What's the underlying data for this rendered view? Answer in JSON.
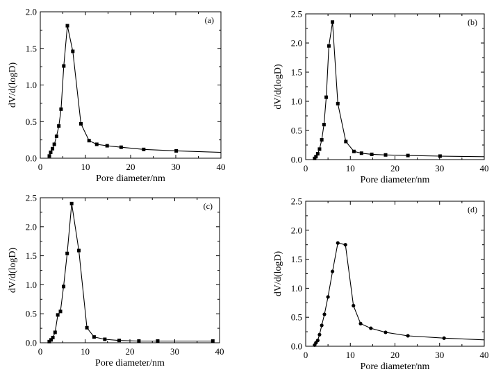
{
  "chart_data": [
    {
      "type": "line",
      "panel_label": "(a)",
      "xlabel": "Pore diameter/nm",
      "ylabel": "dV/d(logD)",
      "xlim": [
        0,
        40
      ],
      "ylim": [
        0,
        2.0
      ],
      "xticks": [
        "0",
        "10",
        "20",
        "30",
        "40"
      ],
      "yticks": [
        "0.0",
        "0.5",
        "1.0",
        "1.5",
        "2.0"
      ],
      "marker": "square",
      "x": [
        2.0,
        2.3,
        2.7,
        3.1,
        3.6,
        4.1,
        4.6,
        5.2,
        6.0,
        7.2,
        9.0,
        10.8,
        12.5,
        14.8,
        17.9,
        22.9,
        30.1,
        40.0
      ],
      "y": [
        0.03,
        0.08,
        0.13,
        0.19,
        0.3,
        0.44,
        0.67,
        1.26,
        1.81,
        1.46,
        0.47,
        0.24,
        0.19,
        0.17,
        0.15,
        0.12,
        0.1,
        0.08
      ]
    },
    {
      "type": "line",
      "panel_label": "(b)",
      "xlabel": "Pore diameter/nm",
      "ylabel": "dV/d(logD)",
      "xlim": [
        0,
        40
      ],
      "ylim": [
        0,
        2.5
      ],
      "xticks": [
        "0",
        "10",
        "20",
        "30",
        "40"
      ],
      "yticks": [
        "0.0",
        "0.5",
        "1.0",
        "1.5",
        "2.0",
        "2.5"
      ],
      "marker": "square",
      "x": [
        2.0,
        2.3,
        2.7,
        3.1,
        3.6,
        4.1,
        4.6,
        5.2,
        6.0,
        7.2,
        9.0,
        10.8,
        12.5,
        14.8,
        17.9,
        22.9,
        30.1,
        40.0
      ],
      "y": [
        0.02,
        0.05,
        0.1,
        0.18,
        0.34,
        0.6,
        1.07,
        1.95,
        2.36,
        0.96,
        0.31,
        0.14,
        0.11,
        0.09,
        0.08,
        0.07,
        0.06,
        0.05
      ]
    },
    {
      "type": "line",
      "panel_label": "(c)",
      "xlabel": "Pore diameter/nm",
      "ylabel": "dV/d(logD)",
      "xlim": [
        0,
        40
      ],
      "ylim": [
        0,
        2.5
      ],
      "xticks": [
        "0",
        "10",
        "20",
        "30",
        "40"
      ],
      "yticks": [
        "0.0",
        "0.5",
        "1.0",
        "1.5",
        "2.0",
        "2.5"
      ],
      "marker": "square",
      "x": [
        2.0,
        2.4,
        2.8,
        3.3,
        3.9,
        4.5,
        5.2,
        6.0,
        7.0,
        8.6,
        10.4,
        12.0,
        14.4,
        17.6,
        22.0,
        26.2,
        38.5
      ],
      "y": [
        0.02,
        0.05,
        0.09,
        0.18,
        0.48,
        0.54,
        0.97,
        1.54,
        2.4,
        1.59,
        0.26,
        0.1,
        0.06,
        0.04,
        0.03,
        0.03,
        0.03
      ]
    },
    {
      "type": "line",
      "panel_label": "(d)",
      "xlabel": "Pore diameter/nm",
      "ylabel": "dV/d(logD)",
      "xlim": [
        0,
        40
      ],
      "ylim": [
        0,
        2.5
      ],
      "xticks": [
        "0",
        "10",
        "20",
        "30",
        "40"
      ],
      "yticks": [
        "0.0",
        "0.5",
        "1.0",
        "1.5",
        "2.0",
        "2.5"
      ],
      "marker": "circle",
      "x": [
        2.0,
        2.3,
        2.7,
        3.1,
        3.6,
        4.2,
        5.0,
        6.0,
        7.2,
        8.9,
        10.7,
        12.3,
        14.6,
        17.9,
        22.9,
        31.0,
        40.0
      ],
      "y": [
        0.02,
        0.06,
        0.1,
        0.2,
        0.36,
        0.55,
        0.85,
        1.29,
        1.78,
        1.75,
        0.7,
        0.39,
        0.31,
        0.24,
        0.18,
        0.14,
        0.11
      ]
    }
  ]
}
